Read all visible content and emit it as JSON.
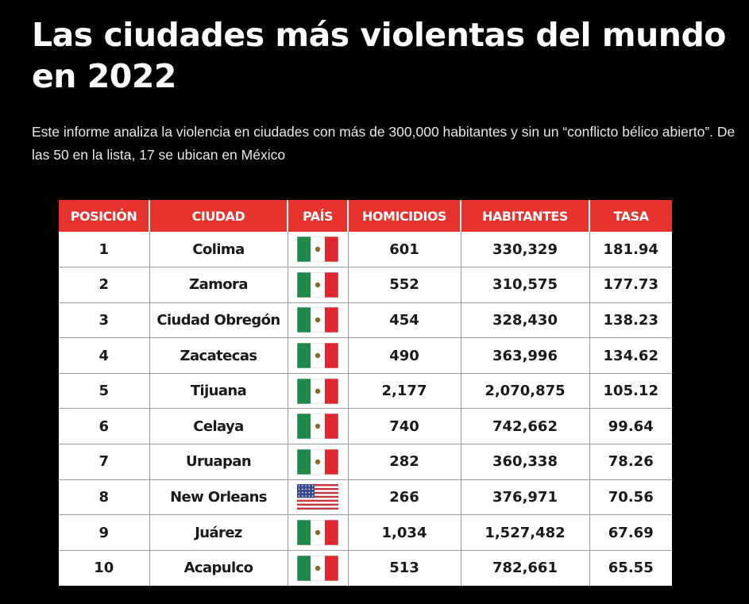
{
  "title": "Las ciudades más violentas del mundo en 2022",
  "subtitle": "Este informe analiza la violencia en ciudades con más de 300,000 habitantes y sin un “conflicto bélico abierto”. De las 50 en la lista, 17 se ubican en México",
  "colors": {
    "header_bg": "#e8322d",
    "background": "#000000",
    "mexico_green": "#1e8a4a",
    "mexico_red": "#e0272f"
  },
  "table": {
    "headers": [
      "POSICIÓN",
      "CIUDAD",
      "PAÍS",
      "HOMICIDIOS",
      "HABITANTES",
      "TASA"
    ],
    "rows": [
      {
        "pos": "1",
        "city": "Colima",
        "flag": "mexico-flag",
        "hom": "601",
        "hab": "330,329",
        "tasa": "181.94"
      },
      {
        "pos": "2",
        "city": "Zamora",
        "flag": "mexico-flag",
        "hom": "552",
        "hab": "310,575",
        "tasa": "177.73"
      },
      {
        "pos": "3",
        "city": "Ciudad Obregón",
        "flag": "mexico-flag",
        "hom": "454",
        "hab": "328,430",
        "tasa": "138.23"
      },
      {
        "pos": "4",
        "city": "Zacatecas",
        "flag": "mexico-flag",
        "hom": "490",
        "hab": "363,996",
        "tasa": "134.62"
      },
      {
        "pos": "5",
        "city": "Tijuana",
        "flag": "mexico-flag",
        "hom": "2,177",
        "hab": "2,070,875",
        "tasa": "105.12"
      },
      {
        "pos": "6",
        "city": "Celaya",
        "flag": "mexico-flag",
        "hom": "740",
        "hab": "742,662",
        "tasa": "99.64"
      },
      {
        "pos": "7",
        "city": "Uruapan",
        "flag": "mexico-flag",
        "hom": "282",
        "hab": "360,338",
        "tasa": "78.26"
      },
      {
        "pos": "8",
        "city": "New Orleans",
        "flag": "usa-flag",
        "hom": "266",
        "hab": "376,971",
        "tasa": "70.56"
      },
      {
        "pos": "9",
        "city": "Juárez",
        "flag": "mexico-flag",
        "hom": "1,034",
        "hab": "1,527,482",
        "tasa": "67.69"
      },
      {
        "pos": "10",
        "city": "Acapulco",
        "flag": "mexico-flag",
        "hom": "513",
        "hab": "782,661",
        "tasa": "65.55"
      }
    ]
  }
}
